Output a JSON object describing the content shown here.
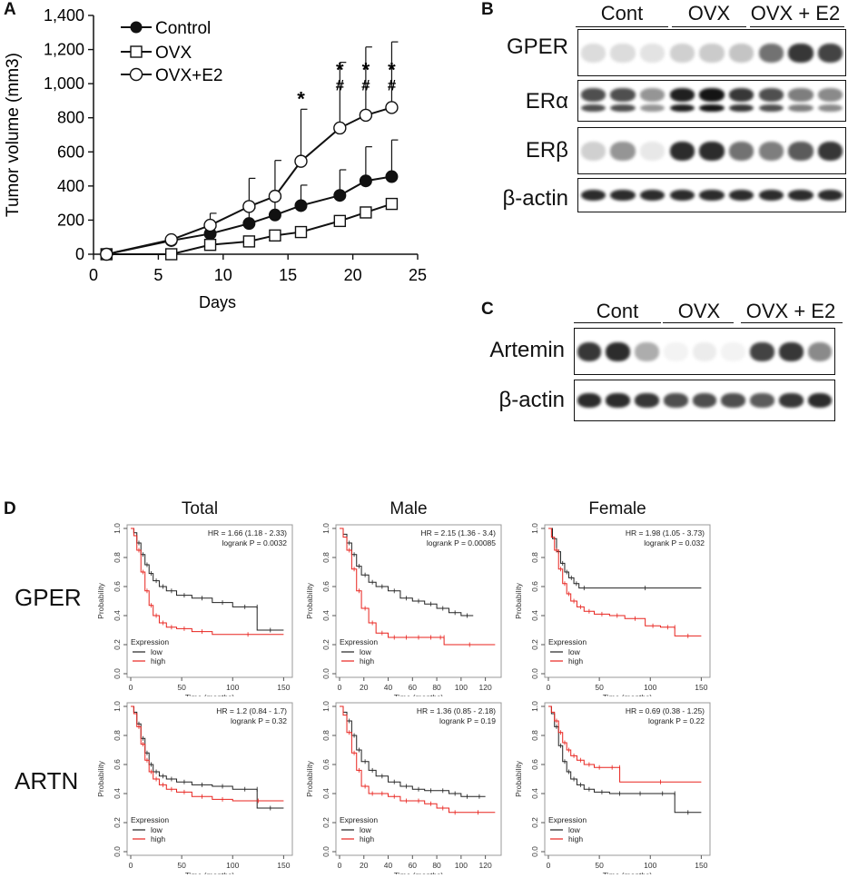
{
  "panel_labels": {
    "a": "A",
    "b": "B",
    "c": "C",
    "d": "D"
  },
  "colors": {
    "low": "#222222",
    "high": "#e8231e",
    "axis": "#111111",
    "box": "#999999"
  },
  "chart_data": [
    {
      "id": "A",
      "type": "line",
      "xlabel": "Days",
      "ylabel": "Tumor volume (mm3)",
      "xlim": [
        0,
        25
      ],
      "ylim": [
        0,
        1400
      ],
      "xticks": [
        0,
        5,
        10,
        15,
        20,
        25
      ],
      "yticks": [
        0,
        200,
        400,
        600,
        800,
        1000,
        1200,
        1400
      ],
      "ytick_labels": [
        "0",
        "200",
        "400",
        "600",
        "800",
        "1,000",
        "1,200",
        "1,400"
      ],
      "series": [
        {
          "name": "Control",
          "marker": "filled-circle",
          "x": [
            1,
            6,
            9,
            12,
            14,
            16,
            19,
            21,
            23
          ],
          "y": [
            0,
            80,
            120,
            180,
            230,
            285,
            345,
            430,
            455
          ],
          "err": [
            0,
            0,
            40,
            90,
            100,
            120,
            150,
            200,
            215
          ]
        },
        {
          "name": "OVX",
          "marker": "open-square",
          "x": [
            1,
            6,
            9,
            12,
            14,
            16,
            19,
            21,
            23
          ],
          "y": [
            0,
            0,
            55,
            75,
            110,
            130,
            195,
            245,
            295
          ],
          "err": [
            0,
            0,
            0,
            0,
            0,
            0,
            0,
            0,
            0
          ]
        },
        {
          "name": "OVX+E2",
          "marker": "open-circle",
          "x": [
            1,
            6,
            9,
            12,
            14,
            16,
            19,
            21,
            23
          ],
          "y": [
            0,
            85,
            170,
            280,
            340,
            545,
            740,
            815,
            860
          ],
          "err": [
            0,
            0,
            70,
            165,
            210,
            305,
            385,
            400,
            385
          ]
        }
      ],
      "annotations": [
        {
          "x": 16,
          "y": 870,
          "text": "*"
        },
        {
          "x": 19,
          "y": 1040,
          "text": "*"
        },
        {
          "x": 19,
          "y": 960,
          "text": "#"
        },
        {
          "x": 21,
          "y": 1040,
          "text": "*"
        },
        {
          "x": 21,
          "y": 960,
          "text": "#"
        },
        {
          "x": 23,
          "y": 1040,
          "text": "*"
        },
        {
          "x": 23,
          "y": 960,
          "text": "#"
        }
      ]
    },
    {
      "id": "D-GPER-Total",
      "type": "line",
      "title": "Total",
      "row": "GPER",
      "xlabel": "Time (months)",
      "ylabel": "Probability",
      "xlim": [
        0,
        155
      ],
      "ylim": [
        0,
        1
      ],
      "xticks": [
        0,
        50,
        100,
        150
      ],
      "yticks": [
        0.0,
        0.2,
        0.4,
        0.6,
        0.8,
        1.0
      ],
      "hr_text": "HR = 1.66 (1.18 - 2.33)",
      "logrank_text": "logrank P = 0.0032",
      "legend_title": "Expression",
      "series": [
        {
          "name": "low",
          "x": [
            0,
            3,
            6,
            10,
            14,
            18,
            22,
            28,
            35,
            45,
            60,
            80,
            100,
            124,
            124,
            150
          ],
          "y": [
            1,
            0.97,
            0.9,
            0.82,
            0.75,
            0.69,
            0.64,
            0.6,
            0.57,
            0.54,
            0.52,
            0.49,
            0.46,
            0.46,
            0.3,
            0.3
          ]
        },
        {
          "name": "high",
          "x": [
            0,
            3,
            6,
            10,
            14,
            18,
            22,
            28,
            35,
            45,
            60,
            80,
            150
          ],
          "y": [
            1,
            0.95,
            0.85,
            0.7,
            0.57,
            0.47,
            0.4,
            0.35,
            0.32,
            0.31,
            0.29,
            0.27,
            0.27
          ]
        }
      ]
    },
    {
      "id": "D-GPER-Male",
      "type": "line",
      "title": "Male",
      "row": "GPER",
      "xlabel": "Time (months)",
      "ylabel": "Probability",
      "xlim": [
        0,
        130
      ],
      "ylim": [
        0,
        1
      ],
      "xticks": [
        0,
        20,
        40,
        60,
        80,
        100,
        120
      ],
      "yticks": [
        0.0,
        0.2,
        0.4,
        0.6,
        0.8,
        1.0
      ],
      "hr_text": "HR = 2.15 (1.36 - 3.4)",
      "logrank_text": "logrank P = 0.00085",
      "legend_title": "Expression",
      "series": [
        {
          "name": "low",
          "x": [
            0,
            3,
            6,
            10,
            14,
            18,
            24,
            30,
            40,
            50,
            60,
            70,
            80,
            90,
            100,
            110
          ],
          "y": [
            1,
            0.96,
            0.9,
            0.82,
            0.74,
            0.68,
            0.63,
            0.6,
            0.57,
            0.52,
            0.5,
            0.48,
            0.45,
            0.42,
            0.4,
            0.4
          ]
        },
        {
          "name": "high",
          "x": [
            0,
            3,
            6,
            10,
            14,
            18,
            24,
            30,
            40,
            50,
            60,
            70,
            80,
            86,
            86,
            128
          ],
          "y": [
            1,
            0.94,
            0.85,
            0.72,
            0.57,
            0.45,
            0.35,
            0.28,
            0.25,
            0.25,
            0.25,
            0.25,
            0.25,
            0.25,
            0.2,
            0.2
          ]
        }
      ]
    },
    {
      "id": "D-GPER-Female",
      "type": "line",
      "title": "Female",
      "row": "GPER",
      "xlabel": "Time (months)",
      "ylabel": "Probability",
      "xlim": [
        0,
        155
      ],
      "ylim": [
        0,
        1
      ],
      "xticks": [
        0,
        50,
        100,
        150
      ],
      "yticks": [
        0.0,
        0.2,
        0.4,
        0.6,
        0.8,
        1.0
      ],
      "hr_text": "HR = 1.98 (1.05 - 3.73)",
      "logrank_text": "logrank P = 0.032",
      "legend_title": "Expression",
      "series": [
        {
          "name": "low",
          "x": [
            0,
            4,
            8,
            12,
            16,
            20,
            25,
            30,
            40,
            150
          ],
          "y": [
            1,
            0.93,
            0.84,
            0.76,
            0.7,
            0.66,
            0.62,
            0.59,
            0.59,
            0.59
          ]
        },
        {
          "name": "high",
          "x": [
            0,
            3,
            6,
            10,
            14,
            18,
            22,
            28,
            35,
            45,
            60,
            75,
            95,
            110,
            124,
            124,
            150
          ],
          "y": [
            1,
            0.94,
            0.85,
            0.72,
            0.62,
            0.55,
            0.5,
            0.46,
            0.43,
            0.41,
            0.4,
            0.38,
            0.33,
            0.32,
            0.32,
            0.26,
            0.26
          ]
        }
      ]
    },
    {
      "id": "D-ARTN-Total",
      "type": "line",
      "title": "Total",
      "row": "ARTN",
      "xlabel": "Time (months)",
      "ylabel": "Probability",
      "xlim": [
        0,
        155
      ],
      "ylim": [
        0,
        1
      ],
      "xticks": [
        0,
        50,
        100,
        150
      ],
      "yticks": [
        0.0,
        0.2,
        0.4,
        0.6,
        0.8,
        1.0
      ],
      "hr_text": "HR = 1.2 (0.84 - 1.7)",
      "logrank_text": "logrank P = 0.32",
      "legend_title": "Expression",
      "series": [
        {
          "name": "low",
          "x": [
            0,
            3,
            6,
            10,
            14,
            18,
            22,
            28,
            35,
            45,
            60,
            80,
            100,
            124,
            124,
            150
          ],
          "y": [
            1,
            0.96,
            0.88,
            0.78,
            0.68,
            0.6,
            0.55,
            0.52,
            0.5,
            0.48,
            0.46,
            0.45,
            0.43,
            0.43,
            0.3,
            0.3
          ]
        },
        {
          "name": "high",
          "x": [
            0,
            3,
            6,
            10,
            14,
            18,
            22,
            28,
            35,
            45,
            60,
            80,
            100,
            150
          ],
          "y": [
            1,
            0.95,
            0.86,
            0.74,
            0.63,
            0.55,
            0.5,
            0.46,
            0.43,
            0.41,
            0.38,
            0.36,
            0.35,
            0.35
          ]
        }
      ]
    },
    {
      "id": "D-ARTN-Male",
      "type": "line",
      "title": "Male",
      "row": "ARTN",
      "xlabel": "Time (months)",
      "ylabel": "Probability",
      "xlim": [
        0,
        130
      ],
      "ylim": [
        0,
        1
      ],
      "xticks": [
        0,
        20,
        40,
        60,
        80,
        100,
        120
      ],
      "yticks": [
        0.0,
        0.2,
        0.4,
        0.6,
        0.8,
        1.0
      ],
      "hr_text": "HR = 1.36 (0.85 - 2.18)",
      "logrank_text": "logrank P = 0.19",
      "legend_title": "Expression",
      "series": [
        {
          "name": "low",
          "x": [
            0,
            3,
            6,
            10,
            14,
            18,
            24,
            30,
            40,
            50,
            60,
            70,
            80,
            90,
            100,
            110,
            120
          ],
          "y": [
            1,
            0.96,
            0.9,
            0.8,
            0.7,
            0.62,
            0.56,
            0.52,
            0.48,
            0.45,
            0.43,
            0.42,
            0.42,
            0.4,
            0.38,
            0.38,
            0.38
          ]
        },
        {
          "name": "high",
          "x": [
            0,
            3,
            6,
            10,
            14,
            18,
            24,
            30,
            40,
            50,
            60,
            70,
            80,
            90,
            100,
            128
          ],
          "y": [
            1,
            0.94,
            0.82,
            0.68,
            0.56,
            0.45,
            0.4,
            0.4,
            0.38,
            0.35,
            0.35,
            0.33,
            0.3,
            0.27,
            0.27,
            0.27
          ]
        }
      ]
    },
    {
      "id": "D-ARTN-Female",
      "type": "line",
      "title": "Female",
      "row": "ARTN",
      "xlabel": "Time (months)",
      "ylabel": "Probability",
      "xlim": [
        0,
        155
      ],
      "ylim": [
        0,
        1
      ],
      "xticks": [
        0,
        50,
        100,
        150
      ],
      "yticks": [
        0.0,
        0.2,
        0.4,
        0.6,
        0.8,
        1.0
      ],
      "hr_text": "HR = 0.69 (0.38 - 1.25)",
      "logrank_text": "logrank P = 0.22",
      "legend_title": "Expression",
      "series": [
        {
          "name": "low",
          "x": [
            0,
            3,
            6,
            10,
            14,
            18,
            22,
            28,
            35,
            45,
            60,
            80,
            100,
            124,
            124,
            150
          ],
          "y": [
            1,
            0.95,
            0.86,
            0.73,
            0.62,
            0.55,
            0.5,
            0.46,
            0.43,
            0.41,
            0.4,
            0.4,
            0.4,
            0.4,
            0.27,
            0.27
          ]
        },
        {
          "name": "high",
          "x": [
            0,
            3,
            6,
            10,
            14,
            18,
            22,
            28,
            35,
            45,
            55,
            70,
            70,
            150
          ],
          "y": [
            1,
            0.96,
            0.9,
            0.82,
            0.75,
            0.7,
            0.66,
            0.63,
            0.6,
            0.58,
            0.58,
            0.58,
            0.48,
            0.48
          ]
        }
      ]
    }
  ],
  "panel_b": {
    "groups": [
      "Cont",
      "OVX",
      "OVX + E2"
    ],
    "blots": [
      "GPER",
      "ERα",
      "ERβ",
      "β-actin"
    ],
    "band_intensity": {
      "GPER": [
        0.15,
        0.15,
        0.12,
        0.2,
        0.22,
        0.25,
        0.6,
        0.85,
        0.8
      ],
      "ERα": [
        0.75,
        0.75,
        0.45,
        0.95,
        1.0,
        0.85,
        0.75,
        0.55,
        0.5
      ],
      "ERβ": [
        0.2,
        0.45,
        0.1,
        0.9,
        0.9,
        0.6,
        0.55,
        0.7,
        0.85
      ],
      "β-actin": [
        0.9,
        0.9,
        0.9,
        0.9,
        0.9,
        0.9,
        0.9,
        0.9,
        0.9
      ]
    }
  },
  "panel_c": {
    "groups": [
      "Cont",
      "OVX",
      "OVX + E2"
    ],
    "blots": [
      "Artemin",
      "β-actin"
    ],
    "band_intensity": {
      "Artemin": [
        0.85,
        0.9,
        0.35,
        0.05,
        0.08,
        0.05,
        0.8,
        0.85,
        0.5
      ],
      "β-actin": [
        0.9,
        0.9,
        0.85,
        0.75,
        0.75,
        0.75,
        0.7,
        0.85,
        0.9
      ]
    }
  },
  "panel_d": {
    "columns": [
      "Total",
      "Male",
      "Female"
    ],
    "rows": [
      "GPER",
      "ARTN"
    ]
  }
}
